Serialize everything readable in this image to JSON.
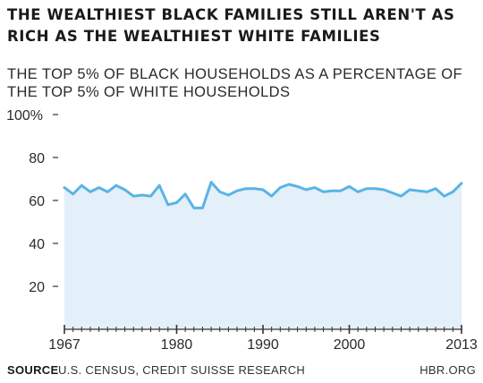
{
  "title": "THE WEALTHIEST BLACK FAMILIES STILL AREN'T AS RICH AS THE WEALTHIEST WHITE FAMILIES",
  "subtitle": "THE TOP 5% OF BLACK HOUSEHOLDS AS A PERCENTAGE OF THE TOP 5% OF WHITE HOUSEHOLDS",
  "footer": {
    "source_label": "SOURCE",
    "source_text": "U.S. CENSUS, CREDIT SUISSE RESEARCH",
    "org": "HBR.ORG"
  },
  "colors": {
    "line": "#5ab4e5",
    "fill": "#e3eff9",
    "axis": "#333333"
  },
  "chart_data": {
    "type": "area",
    "title": "THE WEALTHIEST BLACK FAMILIES STILL AREN'T AS RICH AS THE WEALTHIEST WHITE FAMILIES",
    "subtitle": "THE TOP 5% OF BLACK HOUSEHOLDS AS A PERCENTAGE OF THE TOP 5% OF WHITE HOUSEHOLDS",
    "xlabel": "",
    "ylabel": "",
    "xlim": [
      1967,
      2013
    ],
    "ylim": [
      0,
      100
    ],
    "x_ticks": [
      1967,
      1980,
      1990,
      2000,
      2013
    ],
    "x_tick_labels": [
      "1967",
      "1980",
      "1990",
      "2000",
      "2013"
    ],
    "y_ticks": [
      20,
      40,
      60,
      80,
      100
    ],
    "y_tick_labels": [
      "20",
      "40",
      "60",
      "80",
      "100%"
    ],
    "grid": false,
    "legend": "none",
    "x": [
      1967,
      1968,
      1969,
      1970,
      1971,
      1972,
      1973,
      1974,
      1975,
      1976,
      1977,
      1978,
      1979,
      1980,
      1981,
      1982,
      1983,
      1984,
      1985,
      1986,
      1987,
      1988,
      1989,
      1990,
      1991,
      1992,
      1993,
      1994,
      1995,
      1996,
      1997,
      1998,
      1999,
      2000,
      2001,
      2002,
      2003,
      2004,
      2005,
      2006,
      2007,
      2008,
      2009,
      2010,
      2011,
      2012,
      2013
    ],
    "series": [
      {
        "values": [
          66,
          63,
          67,
          64,
          66,
          64,
          67,
          65,
          62,
          62.5,
          62,
          67,
          58,
          59,
          63,
          56.5,
          56.5,
          68.5,
          64,
          62.5,
          64.5,
          65.5,
          65.5,
          65,
          62,
          66,
          67.5,
          66.5,
          65,
          66,
          64,
          64.5,
          64.5,
          66.5,
          64,
          65.5,
          65.5,
          65,
          63.5,
          62,
          65,
          64.5,
          64,
          65.5,
          62,
          64,
          68
        ]
      }
    ]
  }
}
